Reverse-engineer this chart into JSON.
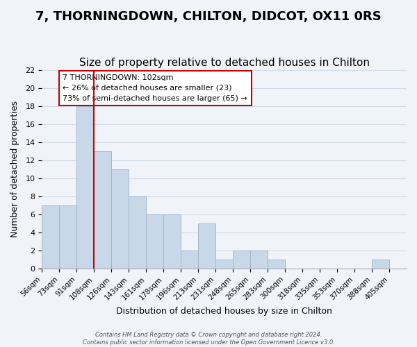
{
  "title": "7, THORNINGDOWN, CHILTON, DIDCOT, OX11 0RS",
  "subtitle": "Size of property relative to detached houses in Chilton",
  "xlabel": "Distribution of detached houses by size in Chilton",
  "ylabel": "Number of detached properties",
  "bin_labels": [
    "56sqm",
    "73sqm",
    "91sqm",
    "108sqm",
    "126sqm",
    "143sqm",
    "161sqm",
    "178sqm",
    "196sqm",
    "213sqm",
    "231sqm",
    "248sqm",
    "265sqm",
    "283sqm",
    "300sqm",
    "318sqm",
    "335sqm",
    "353sqm",
    "370sqm",
    "388sqm",
    "405sqm"
  ],
  "bar_heights": [
    7,
    7,
    18,
    13,
    11,
    8,
    6,
    6,
    2,
    5,
    1,
    2,
    2,
    1,
    0,
    0,
    0,
    0,
    0,
    1
  ],
  "bar_color": "#c8d8e8",
  "bar_edge_color": "#a0b8cc",
  "grid_color": "#d0dce8",
  "annotation_title": "7 THORNINGDOWN: 102sqm",
  "annotation_line1": "← 26% of detached houses are smaller (23)",
  "annotation_line2": "73% of semi-detached houses are larger (65) →",
  "annotation_box_color": "#ffffff",
  "annotation_box_edge_color": "#cc0000",
  "red_line_color": "#cc0000",
  "ylim": [
    0,
    22
  ],
  "yticks": [
    0,
    2,
    4,
    6,
    8,
    10,
    12,
    14,
    16,
    18,
    20,
    22
  ],
  "footer_line1": "Contains HM Land Registry data © Crown copyright and database right 2024.",
  "footer_line2": "Contains public sector information licensed under the Open Government Licence v3.0.",
  "bg_color": "#f0f4f8",
  "title_fontsize": 13,
  "subtitle_fontsize": 11
}
